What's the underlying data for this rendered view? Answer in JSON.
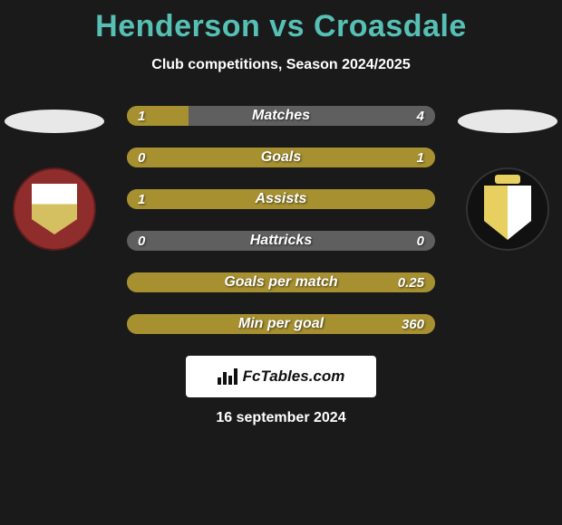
{
  "title_color": "#56c0b5",
  "title": "Henderson vs Croasdale",
  "subtitle": "Club competitions, Season 2024/2025",
  "colors": {
    "left": "#a69030",
    "right": "#5f5f5f",
    "track": "#5f5f5f"
  },
  "bars": [
    {
      "label": "Matches",
      "left": "1",
      "right": "4",
      "left_pct": 20,
      "right_pct": 80
    },
    {
      "label": "Goals",
      "left": "0",
      "right": "1",
      "left_pct": 0,
      "right_pct": 100
    },
    {
      "label": "Assists",
      "left": "1",
      "right": "",
      "left_pct": 100,
      "right_pct": 0
    },
    {
      "label": "Hattricks",
      "left": "0",
      "right": "0",
      "left_pct": 0,
      "right_pct": 0
    },
    {
      "label": "Goals per match",
      "left": "",
      "right": "0.25",
      "left_pct": 0,
      "right_pct": 100
    },
    {
      "label": "Min per goal",
      "left": "",
      "right": "360",
      "left_pct": 0,
      "right_pct": 100
    }
  ],
  "brand": "FcTables.com",
  "date": "16 september 2024"
}
